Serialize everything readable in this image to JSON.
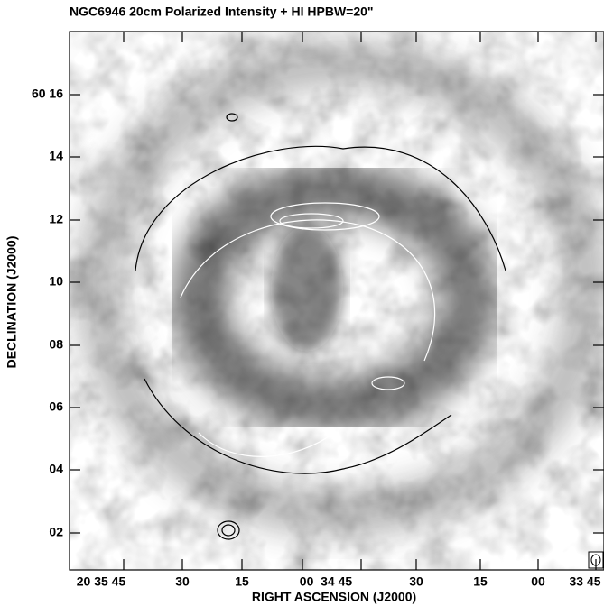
{
  "title": "NGC6946   20cm Polarized Intensity + HI   HPBW=20\"",
  "x_axis": {
    "label": "RIGHT ASCENSION (J2000)",
    "ticks": [
      "20 35 45",
      "30",
      "15",
      "00  34 45",
      "30",
      "15",
      "00",
      "33 45"
    ]
  },
  "y_axis": {
    "label": "DECLINATION (J2000)",
    "ticks": [
      "60 16",
      "14",
      "12",
      "10",
      "08",
      "06",
      "04",
      "02"
    ]
  }
}
